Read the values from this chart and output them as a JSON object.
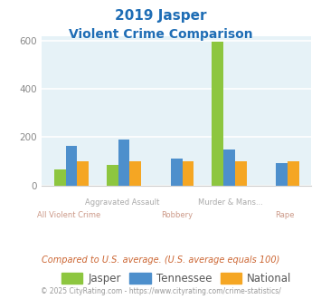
{
  "title_line1": "2019 Jasper",
  "title_line2": "Violent Crime Comparison",
  "top_labels": [
    "",
    "Aggravated Assault",
    "",
    "Murder & Mans...",
    ""
  ],
  "bottom_labels": [
    "All Violent Crime",
    "",
    "Robbery",
    "",
    "Rape"
  ],
  "jasper": [
    65,
    85,
    0,
    595,
    0
  ],
  "tennessee": [
    163,
    190,
    112,
    148,
    93
  ],
  "national": [
    100,
    100,
    100,
    100,
    100
  ],
  "jasper_color": "#8dc63f",
  "tennessee_color": "#4d8fcc",
  "national_color": "#f5a623",
  "title_color": "#1e6db5",
  "bg_color": "#e6f2f7",
  "top_label_color": "#aaaaaa",
  "bot_label_color": "#cc9988",
  "ytick_color": "#888888",
  "ylim": [
    0,
    620
  ],
  "yticks": [
    0,
    200,
    400,
    600
  ],
  "footer_text": "Compared to U.S. average. (U.S. average equals 100)",
  "footer_color": "#cc6633",
  "copyright_text": "© 2025 CityRating.com - https://www.cityrating.com/crime-statistics/",
  "copyright_color": "#999999",
  "legend_labels": [
    "Jasper",
    "Tennessee",
    "National"
  ],
  "bar_width": 0.22
}
